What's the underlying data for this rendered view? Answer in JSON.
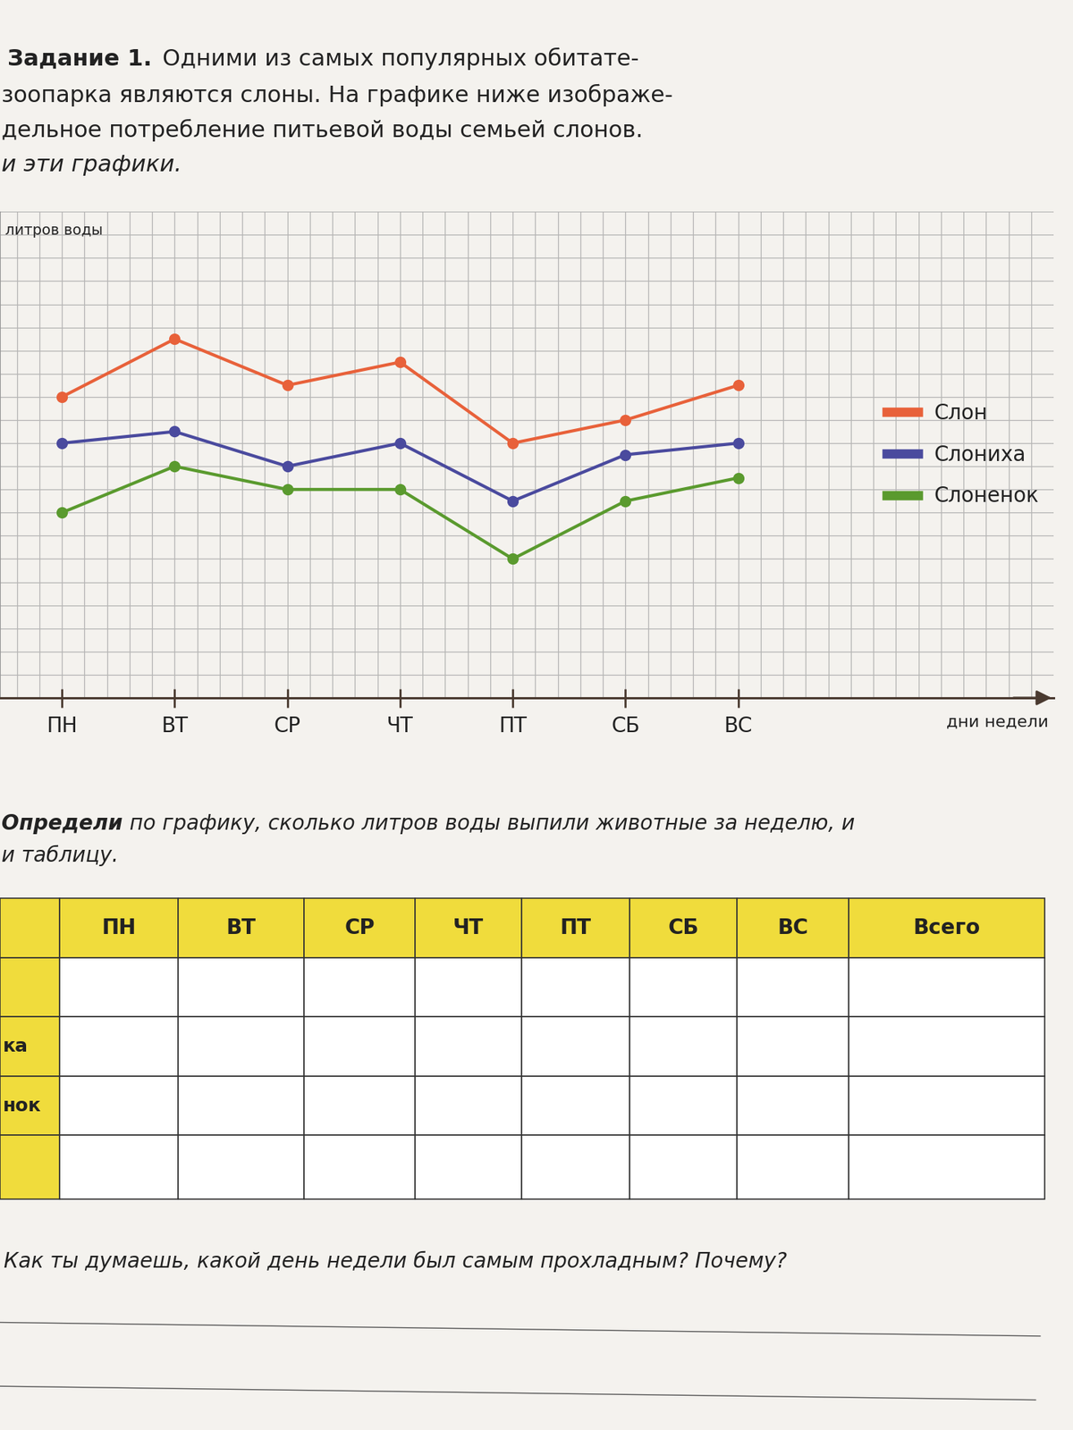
{
  "header": {
    "title": "Задание 1.",
    "lines": [
      "Одними из самых популярных обитате-",
      "зоопарка являются слоны. На графике ниже изображе-",
      "дельное потребление питьевой воды семьей слонов.",
      "и эти графики."
    ]
  },
  "chart_data": {
    "type": "line",
    "y_label": "литров воды",
    "x_label": "дни недели",
    "categories": [
      "ПН",
      "ВТ",
      "СР",
      "ЧТ",
      "ПТ",
      "СБ",
      "ВС"
    ],
    "series": [
      {
        "name": "Слон",
        "color": "#e8613a",
        "values": [
          13,
          15.5,
          13.5,
          14.5,
          11,
          12,
          13.5
        ]
      },
      {
        "name": "Слониха",
        "color": "#4a4a9e",
        "values": [
          11,
          11.5,
          10,
          11,
          8.5,
          10.5,
          11
        ]
      },
      {
        "name": "Слоненок",
        "color": "#5a9a2e",
        "values": [
          8,
          10,
          9,
          9,
          6,
          8.5,
          9.5
        ]
      }
    ],
    "ylim": [
      0,
      21
    ],
    "yticks": [
      0,
      1,
      2,
      3,
      4,
      5,
      6,
      7,
      8,
      9,
      10,
      11,
      12,
      13,
      14,
      15,
      16,
      17,
      18,
      19,
      20,
      21
    ],
    "grid": true,
    "tick_labels": "x",
    "legend": "center right",
    "marker": "circle",
    "line_style": "solid"
  },
  "task": {
    "bold": "Определи",
    "lines": [
      " по графику, сколько литров воды выпили животные за неделю, и",
      "и таблицу."
    ]
  },
  "table": {
    "columns": [
      "ПН",
      "ВТ",
      "СР",
      "ЧТ",
      "ПТ",
      "СБ",
      "ВС",
      "Всего"
    ],
    "row_labels": [
      "ка",
      "нок"
    ]
  },
  "question": "Как ты думаешь, какой день недели был самым прохладным? Почему?"
}
